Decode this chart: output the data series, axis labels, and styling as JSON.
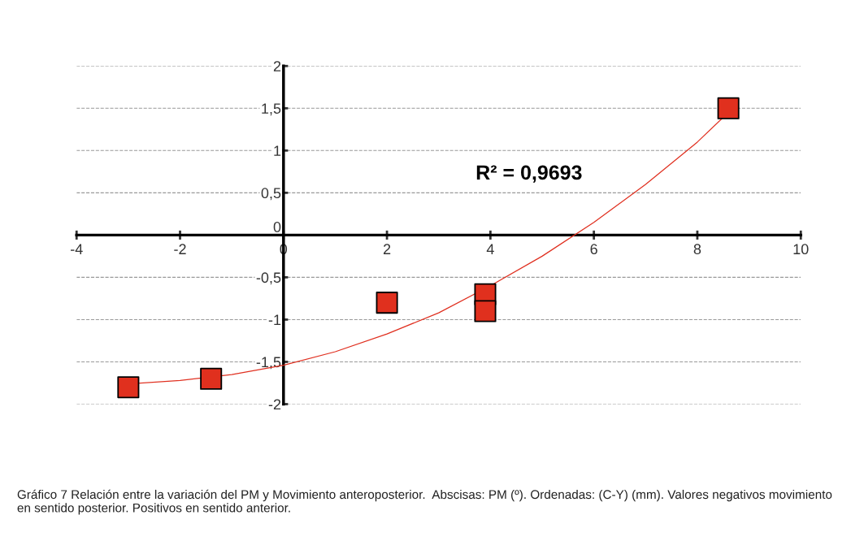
{
  "chart_data": {
    "type": "scatter",
    "series": [
      {
        "color": "#e0301e",
        "marker": "square",
        "x": [
          -3.0,
          -1.4,
          2.0,
          3.9,
          3.9,
          8.6
        ],
        "values": [
          -1.8,
          -1.7,
          -0.8,
          -0.7,
          -0.9,
          1.5
        ]
      },
      {
        "type": "line",
        "color": "#e03020",
        "marker": "none",
        "x": [
          -3,
          -2,
          -1,
          0,
          1,
          2,
          3,
          4,
          5,
          6,
          7,
          8,
          8.6
        ],
        "values": [
          -1.76,
          -1.72,
          -1.65,
          -1.54,
          -1.38,
          -1.17,
          -0.92,
          -0.6,
          -0.25,
          0.15,
          0.6,
          1.1,
          1.45
        ]
      }
    ],
    "xlim": [
      -4,
      10
    ],
    "xticks": [
      -4,
      -2,
      0,
      2,
      4,
      6,
      8,
      10
    ],
    "ylim": [
      -2,
      2
    ],
    "yticks": [
      {
        "value": -2,
        "label": "-2"
      },
      {
        "value": -1.5,
        "label": "-1,5"
      },
      {
        "value": -1,
        "label": "-1"
      },
      {
        "value": -0.5,
        "label": "-0,5"
      },
      0,
      {
        "value": 0.5,
        "label": "0,5"
      },
      1,
      {
        "value": 1.5,
        "label": "1,5"
      },
      2
    ],
    "grid": "y",
    "legend": false,
    "annotations": [
      "R² = 0,9693",
      "Gráfico 7 Relación entre la variación del PM y Movimiento anteroposterior.  Abscisas: PM (º). Ordenadas: (C-Y) (mm). Valores negativos movimiento  en sentido posterior. Positivos en sentido anterior."
    ]
  }
}
